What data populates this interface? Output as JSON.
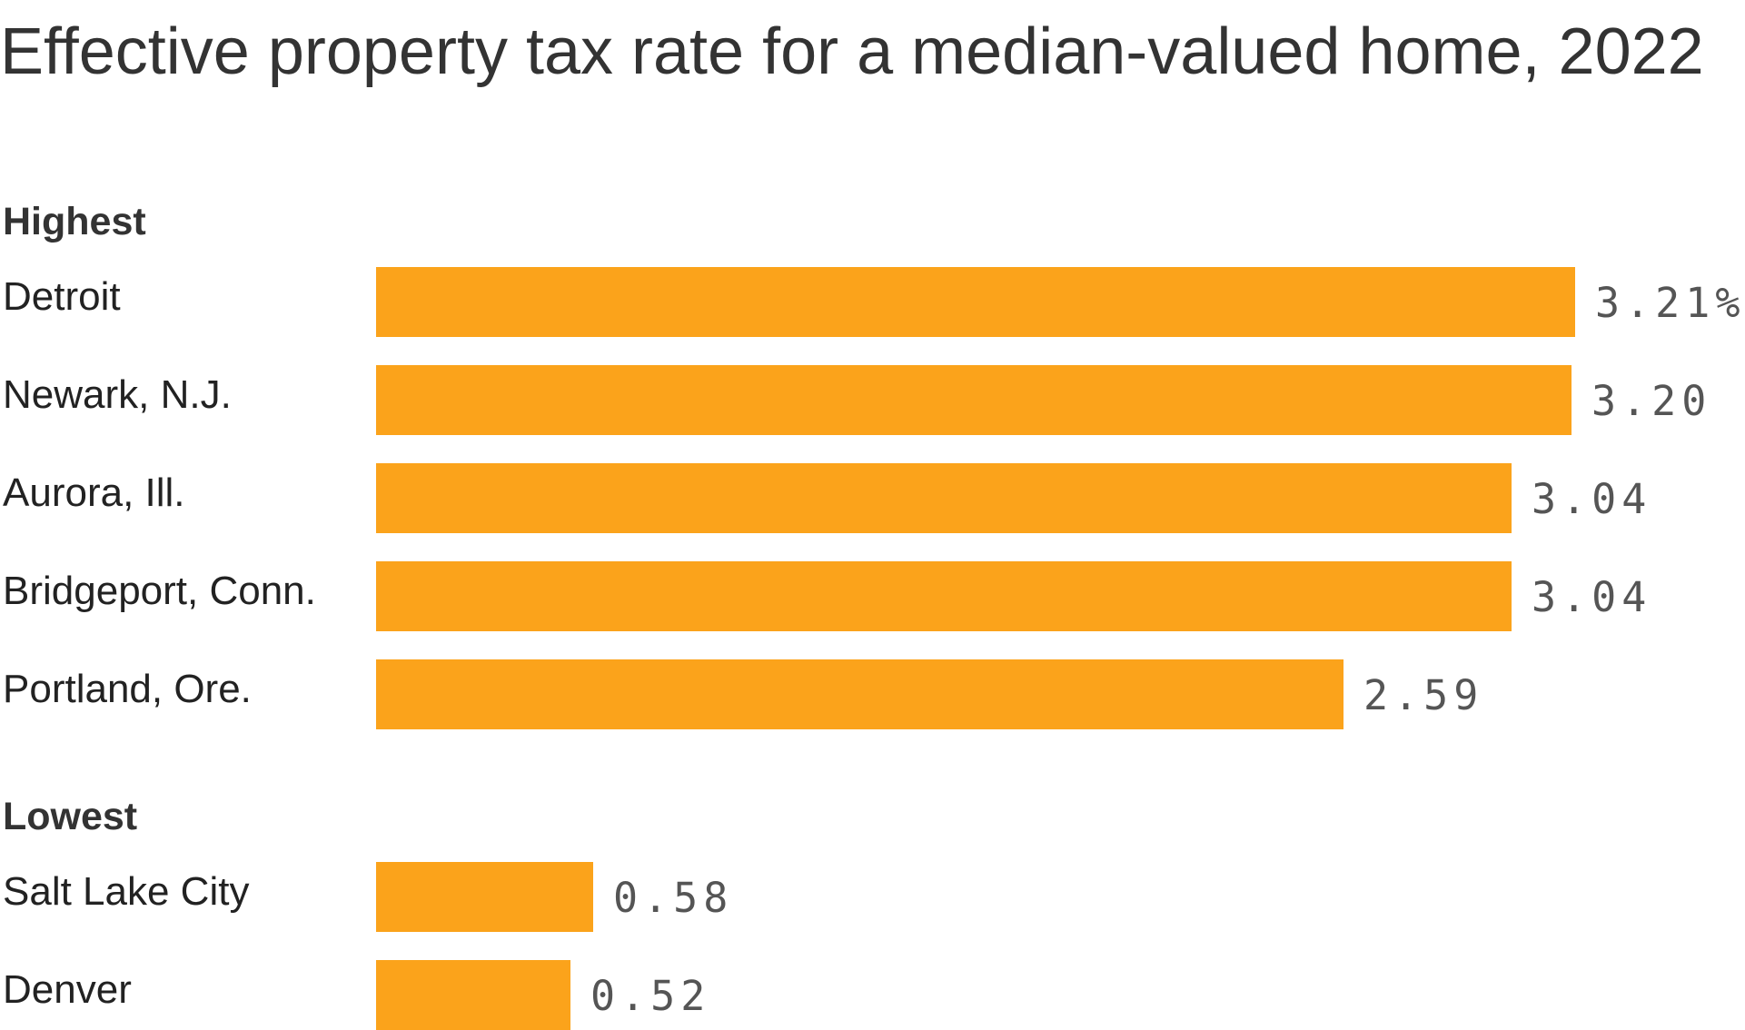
{
  "chart_data": {
    "type": "bar",
    "orientation": "horizontal",
    "title": "Effective property tax rate for a median-valued home, 2022",
    "groups": [
      {
        "label": "Highest",
        "categories": [
          "Detroit",
          "Newark, N.J.",
          "Aurora, Ill.",
          "Bridgeport, Conn.",
          "Portland, Ore."
        ],
        "values": [
          3.21,
          3.2,
          3.04,
          3.04,
          2.59
        ],
        "value_labels": [
          "3.21%",
          "3.20",
          "3.04",
          "3.04",
          "2.59"
        ]
      },
      {
        "label": "Lowest",
        "categories": [
          "Salt Lake City",
          "Denver"
        ],
        "values": [
          0.58,
          0.52
        ],
        "value_labels": [
          "0.58",
          "0.52"
        ]
      }
    ],
    "xlim": [
      0,
      3.21
    ],
    "bar_color": "#fba31b",
    "grid": false,
    "legend": "none"
  }
}
